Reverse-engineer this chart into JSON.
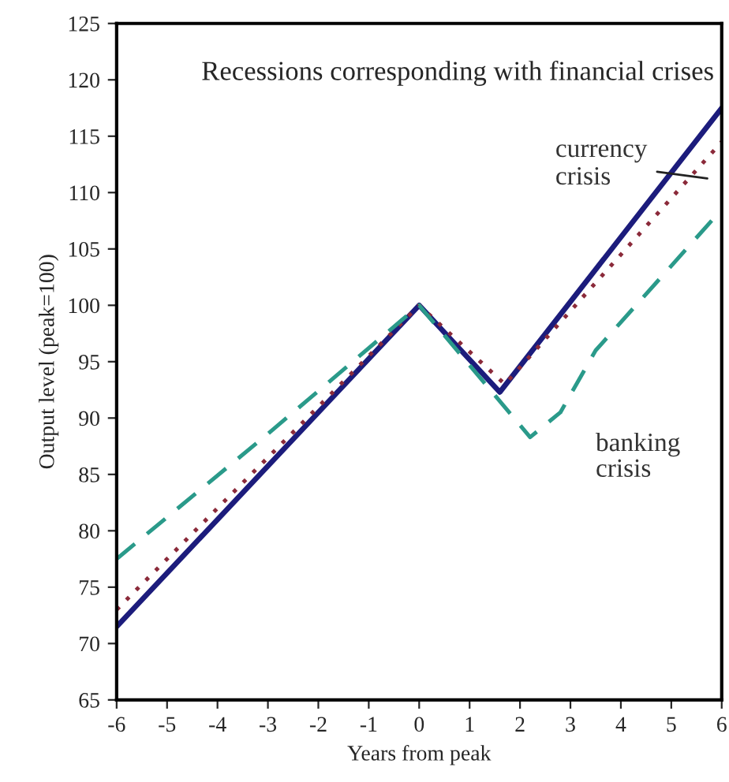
{
  "chart_data": {
    "type": "line",
    "title": "Recessions corresponding with financial crises",
    "xlabel": "Years from peak",
    "ylabel": "Output level (peak=100)",
    "xlim": [
      -6,
      6
    ],
    "xticks": [
      -6,
      -5,
      -4,
      -3,
      -2,
      -1,
      0,
      1,
      2,
      3,
      4,
      5,
      6
    ],
    "ylim": [
      65,
      125
    ],
    "yticks": [
      65,
      70,
      75,
      80,
      85,
      90,
      95,
      100,
      105,
      110,
      115,
      120,
      125
    ],
    "grid": false,
    "legend": false,
    "series": [
      {
        "color": "#1c1c7c",
        "line_style": "solid",
        "x": [
          -6,
          0,
          1.6,
          6
        ],
        "values": [
          71.5,
          100,
          92.3,
          117.5
        ]
      },
      {
        "name": "currency crisis",
        "color": "#8b2a3a",
        "line_style": "dotted",
        "x": [
          -6,
          0,
          1.7,
          6
        ],
        "values": [
          73,
          100,
          93,
          114.5
        ]
      },
      {
        "name": "banking crisis",
        "color": "#2a9a8a",
        "line_style": "dashed",
        "x": [
          -6,
          -3,
          0,
          2.2,
          2.8,
          3.5,
          6
        ],
        "values": [
          77.5,
          88.6,
          100,
          88.3,
          90.5,
          96,
          108.5
        ]
      }
    ]
  }
}
